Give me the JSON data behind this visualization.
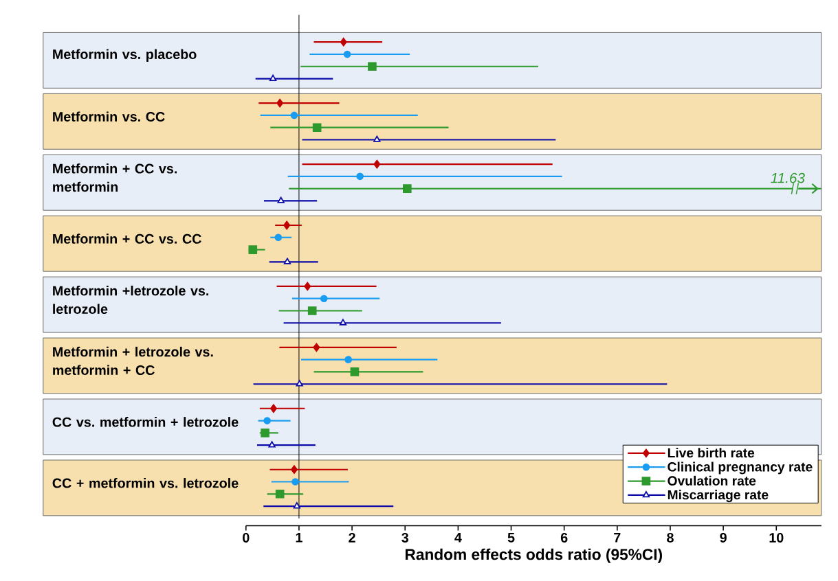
{
  "chart_data": {
    "type": "scatter",
    "orientation": "horizontal",
    "categories": [
      "Metformin vs. placebo",
      "Metformin vs. CC",
      "Metformin + CC vs. metformin",
      "Metformin + CC vs. CC",
      "Metformin +letrozole vs. letrozole",
      "Metformin + letrozole vs. metformin + CC",
      "CC vs. metformin + letrozole",
      "CC + metformin vs. letrozole"
    ],
    "series": [
      {
        "name": "Live birth rate",
        "color": "#c00000",
        "marker": "diamond",
        "values": [
          1.84,
          0.64,
          2.47,
          0.77,
          1.16,
          1.33,
          0.52,
          0.91
        ],
        "errors": [
          [
            1.28,
            2.57
          ],
          [
            0.24,
            1.76
          ],
          [
            1.06,
            5.78
          ],
          [
            0.55,
            1.05
          ],
          [
            0.58,
            2.46
          ],
          [
            0.63,
            2.84
          ],
          [
            0.26,
            1.11
          ],
          [
            0.45,
            1.92
          ]
        ]
      },
      {
        "name": "Clinical pregnancy rate",
        "color": "#1a9cf0",
        "marker": "circle",
        "values": [
          1.91,
          0.91,
          2.15,
          0.61,
          1.47,
          1.93,
          0.4,
          0.93
        ],
        "errors": [
          [
            1.2,
            3.09
          ],
          [
            0.27,
            3.24
          ],
          [
            0.79,
            5.96
          ],
          [
            0.46,
            0.86
          ],
          [
            0.87,
            2.52
          ],
          [
            1.04,
            3.61
          ],
          [
            0.23,
            0.84
          ],
          [
            0.48,
            1.94
          ]
        ]
      },
      {
        "name": "Ovulation rate",
        "color": "#2e9a2e",
        "marker": "square",
        "values": [
          2.38,
          1.34,
          3.04,
          0.13,
          1.25,
          2.05,
          0.36,
          0.64
        ],
        "errors": [
          [
            1.03,
            5.51
          ],
          [
            0.46,
            3.82
          ],
          [
            0.81,
            11.63
          ],
          [
            0.05,
            0.36
          ],
          [
            0.62,
            2.19
          ],
          [
            1.28,
            3.34
          ],
          [
            0.26,
            0.61
          ],
          [
            0.4,
            1.08
          ]
        ]
      },
      {
        "name": "Miscarriage rate",
        "color": "#0a0aa8",
        "marker": "triangle",
        "values": [
          0.51,
          2.47,
          0.66,
          0.78,
          1.83,
          1.01,
          0.49,
          0.96
        ],
        "errors": [
          [
            0.18,
            1.64
          ],
          [
            1.06,
            5.84
          ],
          [
            0.34,
            1.34
          ],
          [
            0.44,
            1.36
          ],
          [
            0.71,
            4.81
          ],
          [
            0.14,
            7.94
          ],
          [
            0.21,
            1.31
          ],
          [
            0.33,
            2.78
          ]
        ]
      }
    ],
    "xlabel": "Random effects odds ratio (95%CI)",
    "xlim": [
      0,
      10.85
    ],
    "xticks": [
      0,
      1,
      2,
      3,
      4,
      5,
      6,
      7,
      8,
      9,
      10
    ],
    "ref_lines": [
      {
        "axis": "x",
        "value": 1,
        "color": "#000000"
      }
    ],
    "annotations": [
      "11.63"
    ],
    "bands": [
      {
        "axis": "y",
        "from": "Metformin vs. placebo",
        "to": "Metformin vs. placebo",
        "color": "#e8eef8"
      },
      {
        "axis": "y",
        "from": "Metformin vs. CC",
        "to": "Metformin vs. CC",
        "color": "#f8e0ae"
      },
      {
        "axis": "y",
        "from": "Metformin + CC vs. metformin",
        "to": "Metformin + CC vs. metformin",
        "color": "#e8eef8"
      },
      {
        "axis": "y",
        "from": "Metformin + CC vs. CC",
        "to": "Metformin + CC vs. CC",
        "color": "#f8e0ae"
      },
      {
        "axis": "y",
        "from": "Metformin +letrozole vs. letrozole",
        "to": "Metformin +letrozole vs. letrozole",
        "color": "#e8eef8"
      },
      {
        "axis": "y",
        "from": "Metformin + letrozole vs. metformin + CC",
        "to": "Metformin + letrozole vs. metformin + CC",
        "color": "#f8e0ae"
      },
      {
        "axis": "y",
        "from": "CC vs. metformin + letrozole",
        "to": "CC vs. metformin + letrozole",
        "color": "#e8eef8"
      },
      {
        "axis": "y",
        "from": "CC + metformin vs. letrozole",
        "to": "CC + metformin vs. letrozole",
        "color": "#f8e0ae"
      }
    ],
    "legend": "bottom right"
  }
}
